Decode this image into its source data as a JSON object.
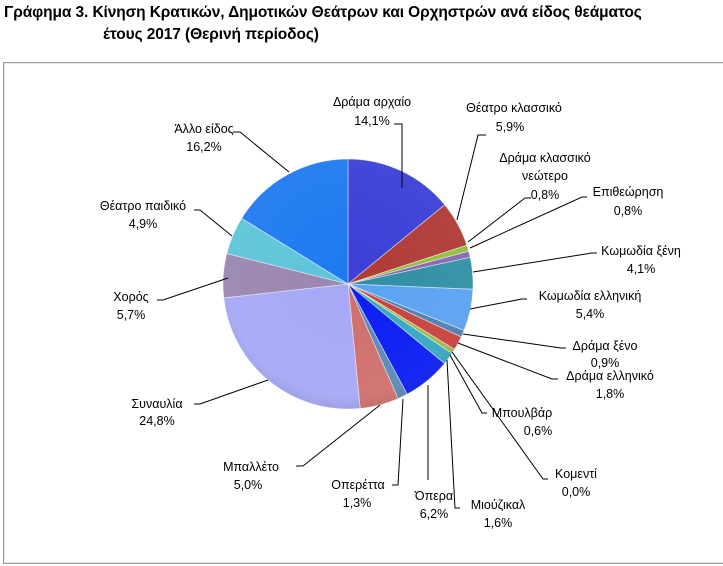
{
  "title": {
    "line1": "Γράφημα  3. Κίνηση Κρατικών, Δημοτικών Θεάτρων και Ορχηστρών ανά είδος θεάματος",
    "line2": "έτους  2017  (Θερινή  περίοδος)"
  },
  "chart_data": {
    "type": "pie",
    "title": "Γράφημα 3. Κίνηση Κρατικών, Δημοτικών Θεάτρων και Ορχηστρών ανά είδος θεάματος έτους 2017 (Θερινή περίοδος)",
    "start_angle": "12 o'clock, clockwise",
    "unit": "%",
    "categories": [
      "Δράμα αρχαίο",
      "Θέατρο κλασσικό",
      "Δράμα κλασσικό νεώτερο",
      "Επιθεώρηση",
      "Κωμωδία ξένη",
      "Κωμωδία ελληνική",
      "Δράμα ξένο",
      "Δράμα ελληνικό",
      "Μπουλβάρ",
      "Κομεντί",
      "Μιούζικαλ",
      "Όπερα",
      "Οπερέττα",
      "Μπαλλέτο",
      "Συναυλία",
      "Χορός",
      "Θέατρο παιδικό",
      "Άλλο είδος"
    ],
    "values": [
      14.1,
      5.9,
      0.8,
      0.8,
      4.1,
      5.4,
      0.9,
      1.8,
      0.6,
      0.0,
      1.6,
      6.2,
      1.3,
      5.0,
      24.8,
      5.7,
      4.9,
      16.2
    ],
    "value_labels": [
      "14,1%",
      "5,9%",
      "0,8%",
      "0,8%",
      "4,1%",
      "5,4%",
      "0,9%",
      "1,8%",
      "0,6%",
      "0,0%",
      "1,6%",
      "6,2%",
      "1,3%",
      "5,0%",
      "24,8%",
      "5,7%",
      "4,9%",
      "16,2%"
    ],
    "colors": [
      "#3b3fd6",
      "#b03a36",
      "#8fbf3a",
      "#8a63b8",
      "#2f8fa3",
      "#5aa2f2",
      "#4f7fb0",
      "#c9403c",
      "#9ab84a",
      "#3aa0b8",
      "#33a7c4",
      "#0a1cf2",
      "#5a88b4",
      "#cf6f6c",
      "#a6a8f7",
      "#9a86b0",
      "#5ec4d8",
      "#1e7af0"
    ],
    "legend": "none (data labels with leader lines)"
  },
  "labels": [
    {
      "name": "Δράμα  αρχαίο",
      "value": "14,1%"
    },
    {
      "name": "Θέατρο κλασσικό",
      "value": "5,9%"
    },
    {
      "name": "Δράμα κλασσικό",
      "name2": "νεώτερο",
      "value": "0,8%"
    },
    {
      "name": "Επιθεώρηση",
      "value": "0,8%"
    },
    {
      "name": "Κωμωδία ξένη",
      "value": "4,1%"
    },
    {
      "name": "Κωμωδία ελληνική",
      "value": "5,4%"
    },
    {
      "name": "Δράμα ξένο",
      "value": "0,9%"
    },
    {
      "name": "Δράμα ελληνικό",
      "value": "1,8%"
    },
    {
      "name": "Μπουλβάρ",
      "value": "0,6%"
    },
    {
      "name": "Κομεντί",
      "value": "0,0%"
    },
    {
      "name": "Μιούζικαλ",
      "value": "1,6%"
    },
    {
      "name": "Όπερα",
      "value": "6,2%"
    },
    {
      "name": "Οπερέττα",
      "value": "1,3%"
    },
    {
      "name": "Μπαλλέτο",
      "value": "5,0%"
    },
    {
      "name": "Συναυλία",
      "value": "24,8%"
    },
    {
      "name": "Χορός",
      "value": "5,7%"
    },
    {
      "name": "Θέατρο παιδικό",
      "value": "4,9%"
    },
    {
      "name": "Άλλο είδος",
      "value": "16,2%"
    }
  ]
}
